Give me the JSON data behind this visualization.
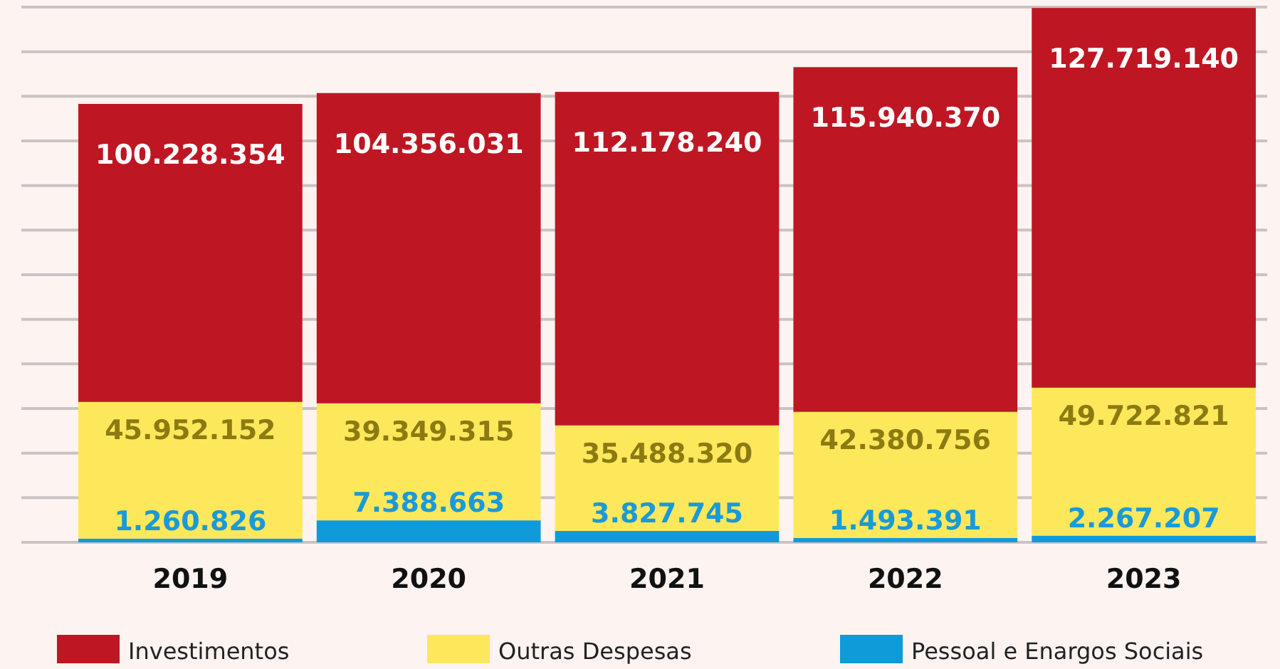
{
  "chart_data": {
    "type": "bar",
    "stacked": true,
    "categories": [
      "2019",
      "2020",
      "2021",
      "2022",
      "2023"
    ],
    "series": [
      {
        "name": "Pessoal e Enargos Sociais",
        "color": "#0f9bd9",
        "values": [
          1260826,
          7388663,
          3827745,
          1493391,
          2267207
        ],
        "value_labels": [
          "1.260.826",
          "7.388.663",
          "3.827.745",
          "1.493.391",
          "2.267.207"
        ]
      },
      {
        "name": "Outras Despesas",
        "color": "#fde85b",
        "values": [
          45952152,
          39349315,
          35488320,
          42380756,
          49722821
        ],
        "value_labels": [
          "45.952.152",
          "39.349.315",
          "35.488.320",
          "42.380.756",
          "49.722.821"
        ]
      },
      {
        "name": "Investimentos",
        "color": "#be1723",
        "values": [
          100228354,
          104356031,
          112178240,
          115940370,
          127719140
        ],
        "value_labels": [
          "100.228.354",
          "104.356.031",
          "112.178.240",
          "115.940.370",
          "127.719.140"
        ]
      }
    ],
    "ylim": [
      0,
      180000000
    ],
    "yticks": [
      {
        "value": 0,
        "label": null
      },
      {
        "value": 15000000,
        "label": null
      },
      {
        "value": 30000000,
        "label": null
      },
      {
        "value": 45000000,
        "label": null
      },
      {
        "value": 60000000,
        "label": null
      },
      {
        "value": 75000000,
        "label": null
      },
      {
        "value": 90000000,
        "label": null
      },
      {
        "value": 105000000,
        "label": null
      },
      {
        "value": 120000000,
        "label": null
      },
      {
        "value": 135000000,
        "label": null
      },
      {
        "value": 150000000,
        "label": null
      },
      {
        "value": 165000000,
        "label": null
      },
      {
        "value": 180000000,
        "label": null
      }
    ],
    "grid": "y",
    "tick_labels": "x",
    "legend": "bottom"
  }
}
